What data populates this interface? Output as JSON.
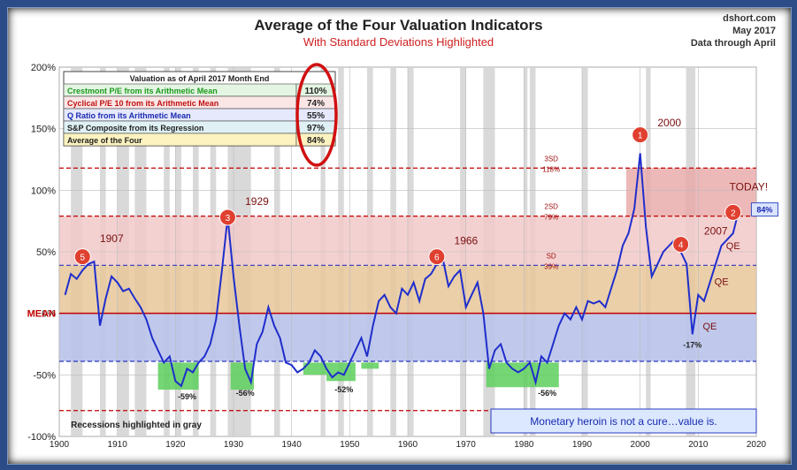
{
  "header": {
    "title": "Average of the Four Valuation Indicators",
    "subtitle": "With Standard Deviations Highlighted",
    "source": "dshort.com",
    "date": "May 2017",
    "data_through": "Data through April"
  },
  "colors": {
    "line": "#1f2ecb",
    "band_sd3": "#e8a6a6",
    "band_sd2": "#f2c9c9",
    "band_sd1": "#e8c79a",
    "band_mean": "#b9c3ea",
    "trough": "#5ccf5c",
    "mean": "#c00000",
    "dash_red": "#c00000",
    "dash_blue": "#2b37c0",
    "marker": "#e04030",
    "recession": "#d9d9d9"
  },
  "table": {
    "header": "Valuation as of April 2017  Month End",
    "rows": [
      {
        "label": "Crestmont P/E from its Arithmetic Mean",
        "value": "110%",
        "color": "#1a9a1a",
        "bg": "#e4f5e4"
      },
      {
        "label": "Cyclical P/E 10 from its Arithmetic Mean",
        "value": "74%",
        "color": "#c01010",
        "bg": "#fbe6e6"
      },
      {
        "label": "Q Ratio from its Arithmetic Mean",
        "value": "55%",
        "color": "#1a2ab0",
        "bg": "#e6e9fb"
      },
      {
        "label": "S&P Composite from its Regression",
        "value": "97%",
        "color": "#222222",
        "bg": "#dff1f5"
      },
      {
        "label": "Average of the Four",
        "value": "84%",
        "color": "#222222",
        "bg": "#fdf3c0"
      }
    ]
  },
  "chart_data": {
    "type": "line",
    "x_ticks": [
      "1900",
      "1910",
      "1920",
      "1930",
      "1940",
      "1950",
      "1960",
      "1970",
      "1980",
      "1990",
      "2000",
      "2010",
      "2020"
    ],
    "y_ticks": [
      "200%",
      "150%",
      "100%",
      "50%",
      "0%",
      "-50%",
      "-100%"
    ],
    "xlim": [
      1900,
      2020
    ],
    "ylim": [
      -100,
      200
    ],
    "grid": true,
    "series": [
      {
        "x": [
          1901,
          1902,
          1903,
          1904,
          1905,
          1906,
          1907,
          1908,
          1909,
          1910,
          1911,
          1912,
          1913,
          1914,
          1915,
          1916,
          1917,
          1918,
          1919,
          1920,
          1921,
          1922,
          1923,
          1924,
          1925,
          1926,
          1927,
          1928,
          1929,
          1930,
          1931,
          1932,
          1933,
          1934,
          1935,
          1936,
          1937,
          1938,
          1939,
          1940,
          1941,
          1942,
          1943,
          1944,
          1945,
          1946,
          1947,
          1948,
          1949,
          1950,
          1951,
          1952,
          1953,
          1954,
          1955,
          1956,
          1957,
          1958,
          1959,
          1960,
          1961,
          1962,
          1963,
          1964,
          1965,
          1966,
          1967,
          1968,
          1969,
          1970,
          1971,
          1972,
          1973,
          1974,
          1975,
          1976,
          1977,
          1978,
          1979,
          1980,
          1981,
          1982,
          1983,
          1984,
          1985,
          1986,
          1987,
          1988,
          1989,
          1990,
          1991,
          1992,
          1993,
          1994,
          1995,
          1996,
          1997,
          1998,
          1999,
          2000,
          2001,
          2002,
          2003,
          2004,
          2005,
          2006,
          2007,
          2008,
          2009,
          2010,
          2011,
          2012,
          2013,
          2014,
          2015,
          2016,
          2017
        ],
        "y": [
          15,
          32,
          28,
          35,
          40,
          42,
          -10,
          12,
          30,
          25,
          18,
          20,
          12,
          5,
          -5,
          -20,
          -30,
          -40,
          -35,
          -55,
          -59,
          -45,
          -48,
          -40,
          -35,
          -25,
          -5,
          35,
          78,
          30,
          -10,
          -45,
          -56,
          -25,
          -15,
          5,
          -10,
          -20,
          -40,
          -42,
          -48,
          -45,
          -40,
          -30,
          -35,
          -45,
          -52,
          -48,
          -50,
          -40,
          -30,
          -20,
          -35,
          -10,
          10,
          15,
          5,
          0,
          20,
          15,
          25,
          10,
          28,
          32,
          40,
          45,
          22,
          30,
          35,
          5,
          15,
          25,
          0,
          -45,
          -30,
          -25,
          -40,
          -45,
          -48,
          -45,
          -40,
          -56,
          -35,
          -40,
          -25,
          -10,
          0,
          -5,
          5,
          -5,
          10,
          8,
          10,
          5,
          20,
          35,
          55,
          65,
          85,
          130,
          70,
          30,
          40,
          50,
          55,
          60,
          50,
          40,
          -17,
          15,
          10,
          25,
          40,
          55,
          60,
          65,
          84
        ]
      }
    ],
    "sd_lines": [
      {
        "label": "3SD",
        "value": "118%"
      },
      {
        "label": "2SD",
        "value": "79%"
      },
      {
        "label": "SD",
        "value": "39%"
      },
      {
        "label": "MEAN"
      }
    ],
    "markers": [
      {
        "n": "1",
        "label": "2000"
      },
      {
        "n": "2",
        "label": "TODAY!"
      },
      {
        "n": "3",
        "label": "1929"
      },
      {
        "n": "4",
        "label": "2007"
      },
      {
        "n": "5",
        "label": "1907"
      },
      {
        "n": "6",
        "label": "1966"
      }
    ],
    "trough_labels": [
      "-59%",
      "-56%",
      "-52%",
      "-56%",
      "-17%"
    ],
    "qe_labels": [
      "QE",
      "QE",
      "QE"
    ],
    "current_value": "84%",
    "recession_note": "Recessions highlighted in gray",
    "callout": "Monetary heroin is not a cure…value is."
  }
}
